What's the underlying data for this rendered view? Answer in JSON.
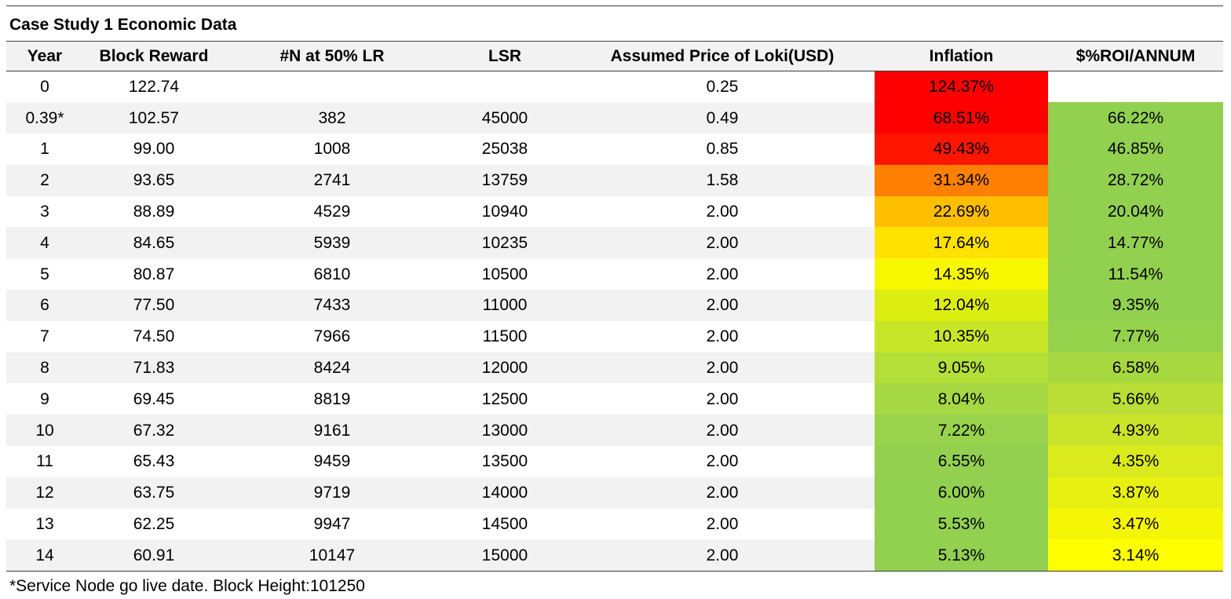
{
  "title": "Case Study 1 Economic Data",
  "columns": [
    "Year",
    "Block Reward",
    "#N at 50% LR",
    "LSR",
    "Assumed Price of Loki(USD)",
    "Inflation",
    "$%ROI/ANNUM"
  ],
  "rows": [
    {
      "year": "0",
      "block_reward": "122.74",
      "n_at_50_lr": "",
      "lsr": "",
      "price": "0.25",
      "inflation": "124.37%",
      "inflation_color": "#ff0000",
      "roi": "",
      "roi_color": ""
    },
    {
      "year": "0.39*",
      "block_reward": "102.57",
      "n_at_50_lr": "382",
      "lsr": "45000",
      "price": "0.49",
      "inflation": "68.51%",
      "inflation_color": "#ff0000",
      "roi": "66.22%",
      "roi_color": "#92d050"
    },
    {
      "year": "1",
      "block_reward": "99.00",
      "n_at_50_lr": "1008",
      "lsr": "25038",
      "price": "0.85",
      "inflation": "49.43%",
      "inflation_color": "#ff1500",
      "roi": "46.85%",
      "roi_color": "#92d050"
    },
    {
      "year": "2",
      "block_reward": "93.65",
      "n_at_50_lr": "2741",
      "lsr": "13759",
      "price": "1.58",
      "inflation": "31.34%",
      "inflation_color": "#ff8000",
      "roi": "28.72%",
      "roi_color": "#92d050"
    },
    {
      "year": "3",
      "block_reward": "88.89",
      "n_at_50_lr": "4529",
      "lsr": "10940",
      "price": "2.00",
      "inflation": "22.69%",
      "inflation_color": "#ffbf00",
      "roi": "20.04%",
      "roi_color": "#92d050"
    },
    {
      "year": "4",
      "block_reward": "84.65",
      "n_at_50_lr": "5939",
      "lsr": "10235",
      "price": "2.00",
      "inflation": "17.64%",
      "inflation_color": "#ffe200",
      "roi": "14.77%",
      "roi_color": "#92d050"
    },
    {
      "year": "5",
      "block_reward": "80.87",
      "n_at_50_lr": "6810",
      "lsr": "10500",
      "price": "2.00",
      "inflation": "14.35%",
      "inflation_color": "#f7f700",
      "roi": "11.54%",
      "roi_color": "#92d050"
    },
    {
      "year": "6",
      "block_reward": "77.50",
      "n_at_50_lr": "7433",
      "lsr": "11000",
      "price": "2.00",
      "inflation": "12.04%",
      "inflation_color": "#dcee10",
      "roi": "9.35%",
      "roi_color": "#92d050"
    },
    {
      "year": "7",
      "block_reward": "74.50",
      "n_at_50_lr": "7966",
      "lsr": "11500",
      "price": "2.00",
      "inflation": "10.35%",
      "inflation_color": "#c8e628",
      "roi": "7.77%",
      "roi_color": "#95d24c"
    },
    {
      "year": "8",
      "block_reward": "71.83",
      "n_at_50_lr": "8424",
      "lsr": "12000",
      "price": "2.00",
      "inflation": "9.05%",
      "inflation_color": "#b4de38",
      "roi": "6.58%",
      "roi_color": "#a8d840"
    },
    {
      "year": "9",
      "block_reward": "69.45",
      "n_at_50_lr": "8819",
      "lsr": "12500",
      "price": "2.00",
      "inflation": "8.04%",
      "inflation_color": "#a5d842",
      "roi": "5.66%",
      "roi_color": "#bade36"
    },
    {
      "year": "10",
      "block_reward": "67.32",
      "n_at_50_lr": "9161",
      "lsr": "13000",
      "price": "2.00",
      "inflation": "7.22%",
      "inflation_color": "#99d24c",
      "roi": "4.93%",
      "roi_color": "#cae42a"
    },
    {
      "year": "11",
      "block_reward": "65.43",
      "n_at_50_lr": "9459",
      "lsr": "13500",
      "price": "2.00",
      "inflation": "6.55%",
      "inflation_color": "#94d050",
      "roi": "4.35%",
      "roi_color": "#daea1c"
    },
    {
      "year": "12",
      "block_reward": "63.75",
      "n_at_50_lr": "9719",
      "lsr": "14000",
      "price": "2.00",
      "inflation": "6.00%",
      "inflation_color": "#92d050",
      "roi": "3.87%",
      "roi_color": "#e8f012"
    },
    {
      "year": "13",
      "block_reward": "62.25",
      "n_at_50_lr": "9947",
      "lsr": "14500",
      "price": "2.00",
      "inflation": "5.53%",
      "inflation_color": "#92d050",
      "roi": "3.47%",
      "roi_color": "#f4f606"
    },
    {
      "year": "14",
      "block_reward": "60.91",
      "n_at_50_lr": "10147",
      "lsr": "15000",
      "price": "2.00",
      "inflation": "5.13%",
      "inflation_color": "#92d050",
      "roi": "3.14%",
      "roi_color": "#ffff00"
    }
  ],
  "footnote": "*Service Node go live date. Block Height:101250"
}
